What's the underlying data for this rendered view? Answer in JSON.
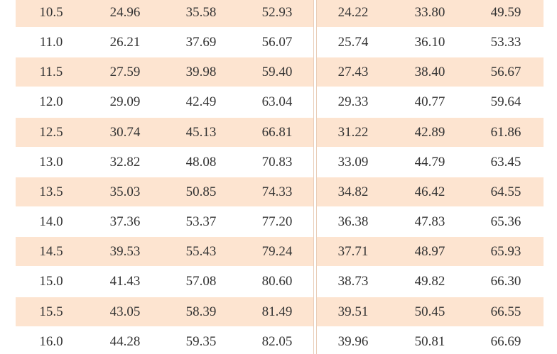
{
  "table": {
    "rows": [
      [
        "10.5",
        "24.96",
        "35.58",
        "52.93",
        "24.22",
        "33.80",
        "49.59"
      ],
      [
        "11.0",
        "26.21",
        "37.69",
        "56.07",
        "25.74",
        "36.10",
        "53.33"
      ],
      [
        "11.5",
        "27.59",
        "39.98",
        "59.40",
        "27.43",
        "38.40",
        "56.67"
      ],
      [
        "12.0",
        "29.09",
        "42.49",
        "63.04",
        "29.33",
        "40.77",
        "59.64"
      ],
      [
        "12.5",
        "30.74",
        "45.13",
        "66.81",
        "31.22",
        "42.89",
        "61.86"
      ],
      [
        "13.0",
        "32.82",
        "48.08",
        "70.83",
        "33.09",
        "44.79",
        "63.45"
      ],
      [
        "13.5",
        "35.03",
        "50.85",
        "74.33",
        "34.82",
        "46.42",
        "64.55"
      ],
      [
        "14.0",
        "37.36",
        "53.37",
        "77.20",
        "36.38",
        "47.83",
        "65.36"
      ],
      [
        "14.5",
        "39.53",
        "55.43",
        "79.24",
        "37.71",
        "48.97",
        "65.93"
      ],
      [
        "15.0",
        "41.43",
        "57.08",
        "80.60",
        "38.73",
        "49.82",
        "66.30"
      ],
      [
        "15.5",
        "43.05",
        "58.39",
        "81.49",
        "39.51",
        "50.45",
        "66.55"
      ],
      [
        "16.0",
        "44.28",
        "59.35",
        "82.05",
        "39.96",
        "50.81",
        "66.69"
      ]
    ]
  }
}
